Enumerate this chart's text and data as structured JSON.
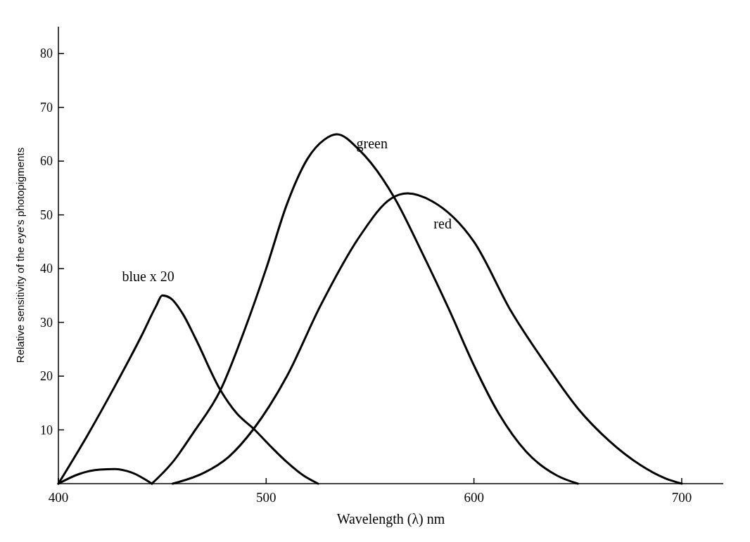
{
  "chart_data": {
    "type": "line",
    "xlabel": "Wavelength (λ) nm",
    "ylabel": "Relative sensitivity of the eye's photopigments",
    "xlim": [
      400,
      720
    ],
    "ylim": [
      0,
      85
    ],
    "xticks": [
      400,
      500,
      600,
      700
    ],
    "yticks": [
      10,
      20,
      30,
      40,
      50,
      60,
      70,
      80
    ],
    "grid": false,
    "line_style": "solid",
    "series": [
      {
        "name": "blue x 20",
        "color": "#000000",
        "x": [
          400,
          414,
          427,
          440,
          447,
          450,
          454,
          460,
          466,
          478,
          486,
          494,
          502,
          510,
          518,
          525
        ],
        "values": [
          0,
          9,
          18,
          27.5,
          33,
          35,
          34.5,
          31.5,
          27,
          17.4,
          13,
          10.2,
          7,
          4,
          1.5,
          0
        ]
      },
      {
        "color": "#000000",
        "x": [
          400,
          410,
          420,
          427,
          435,
          445
        ],
        "values": [
          0,
          1.8,
          2.6,
          2.7,
          2.1,
          0
        ]
      },
      {
        "name": "green",
        "color": "#000000",
        "x": [
          445,
          455,
          465,
          478,
          490,
          500,
          510,
          520,
          528,
          534,
          545,
          562,
          575,
          588,
          600,
          612,
          625,
          640,
          650
        ],
        "values": [
          0,
          4,
          9.5,
          17.4,
          29,
          40,
          52,
          60.5,
          64,
          65,
          62,
          53,
          43,
          32.4,
          22,
          13,
          6,
          1.5,
          0
        ]
      },
      {
        "name": "red",
        "color": "#000000",
        "x": [
          455,
          470,
          482,
          494,
          510,
          526,
          545,
          560,
          568,
          580,
          600,
          618,
          635,
          650,
          665,
          680,
          692,
          700
        ],
        "values": [
          0,
          2,
          5,
          10.2,
          20,
          33,
          46,
          53,
          54,
          52.5,
          45,
          32,
          22,
          14,
          8,
          3.5,
          1,
          0
        ]
      }
    ]
  }
}
